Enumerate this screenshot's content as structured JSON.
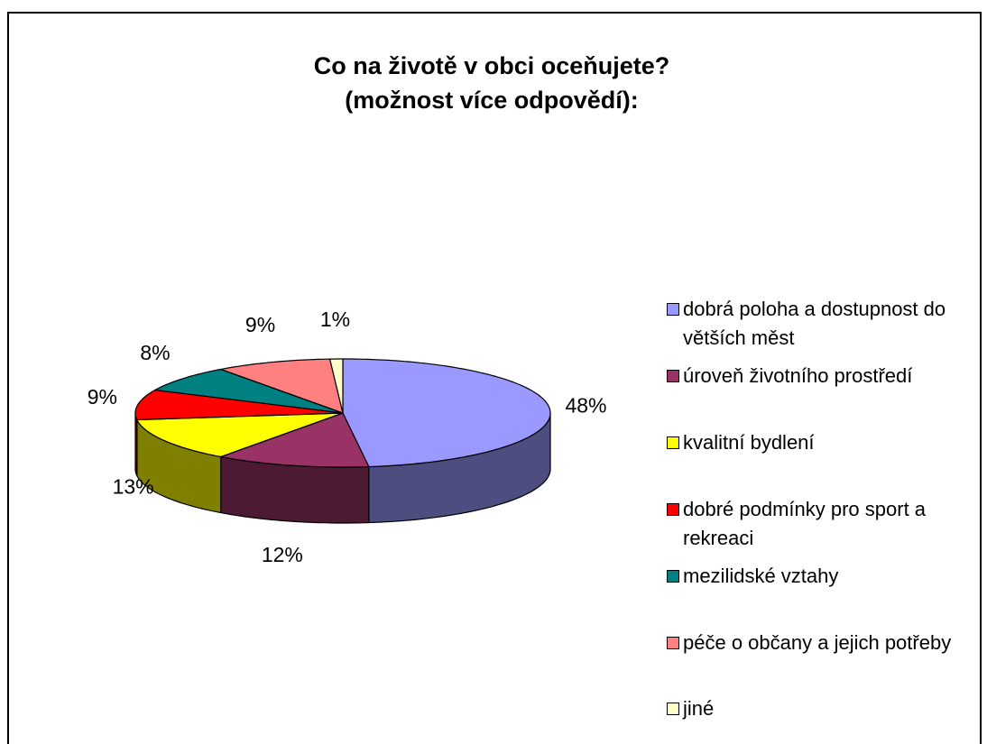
{
  "chart_data": {
    "type": "pie3d",
    "title": "Co na životě v obci oceňujete?",
    "subtitle": "(možnost více odpovědí):",
    "categories": [
      "dobrá poloha a dostupnost do větších měst",
      "úroveň životního prostředí",
      "kvalitní bydlení",
      "dobré podmínky pro sport a rekreaci",
      "mezilidské vztahy",
      "péče o občany a jejich potřeby",
      "jiné"
    ],
    "values": [
      48,
      12,
      13,
      9,
      8,
      9,
      1
    ],
    "value_labels": [
      "48%",
      "12%",
      "13%",
      "9%",
      "8%",
      "9%",
      "1%"
    ],
    "colors": [
      "#9999ff",
      "#993366",
      "#ffff00",
      "#ff0000",
      "#008080",
      "#ff8080",
      "#ffffcc"
    ],
    "legend": "right"
  }
}
